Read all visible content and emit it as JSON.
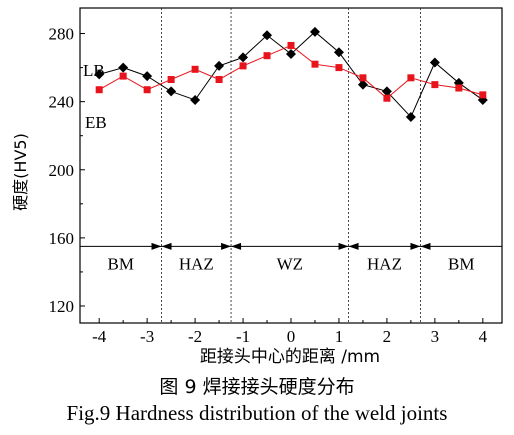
{
  "chart_data": {
    "type": "line",
    "xlabel": "距接头中心的距离 /mm",
    "ylabel": "硬度(HV5)",
    "xlim": [
      -4.4,
      4.4
    ],
    "ylim": [
      110,
      295
    ],
    "xticks": [
      -4,
      -3,
      -2,
      -1,
      0,
      1,
      2,
      3,
      4
    ],
    "yticks": [
      120,
      160,
      200,
      240,
      280
    ],
    "zone_boundaries": [
      -2.7,
      -1.25,
      1.2,
      2.7
    ],
    "zones": [
      {
        "label": "BM",
        "from": -4.4,
        "to": -2.7
      },
      {
        "label": "HAZ",
        "from": -2.7,
        "to": -1.25
      },
      {
        "label": "WZ",
        "from": -1.25,
        "to": 1.2
      },
      {
        "label": "HAZ",
        "from": 1.2,
        "to": 2.7
      },
      {
        "label": "BM",
        "from": 2.7,
        "to": 4.4
      }
    ],
    "zone_line_y": 155,
    "series": [
      {
        "name": "LB",
        "color": "#000000",
        "marker": "diamond",
        "x": [
          -4,
          -3.5,
          -3,
          -2.5,
          -2,
          -1.5,
          -1,
          -0.5,
          0,
          0.5,
          1,
          1.5,
          2,
          2.5,
          3,
          3.5,
          4
        ],
        "y": [
          256,
          260,
          255,
          246,
          241,
          261,
          266,
          279,
          268,
          281,
          269,
          250,
          246,
          231,
          263,
          251,
          241
        ]
      },
      {
        "name": "EB",
        "color": "#e8141c",
        "marker": "square",
        "x": [
          -4,
          -3.5,
          -3,
          -2.5,
          -2,
          -1.5,
          -1,
          -0.5,
          0,
          0.5,
          1,
          1.5,
          2,
          2.5,
          3,
          3.5,
          4
        ],
        "y": [
          247,
          255,
          247,
          253,
          259,
          253,
          261,
          267,
          273,
          262,
          260,
          254,
          242,
          254,
          250,
          248,
          244
        ]
      }
    ]
  },
  "caption": {
    "cn": "图 9   焊接接头硬度分布",
    "en": "Fig.9  Hardness distribution of the weld joints"
  }
}
